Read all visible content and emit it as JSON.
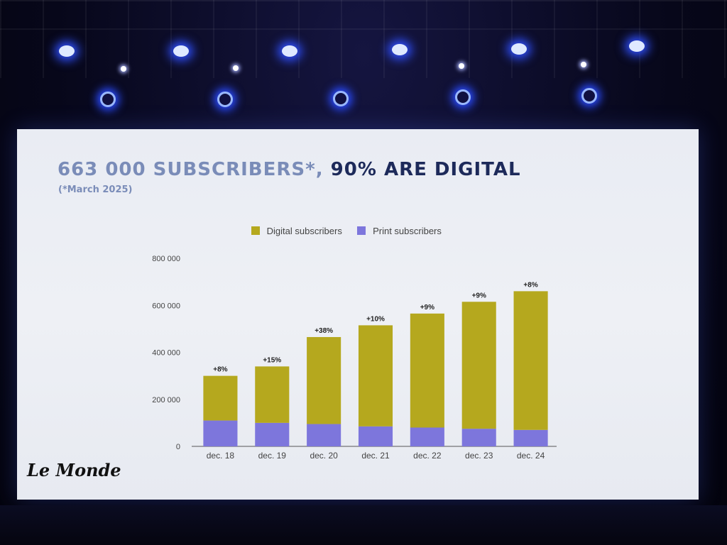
{
  "slide": {
    "title_lead": "663 000 SUBSCRIBERS*,",
    "title_rest": "90% ARE DIGITAL",
    "subtitle": "(*March 2025)",
    "logo": "Le Monde"
  },
  "colors": {
    "digital": "#b5a81e",
    "print": "#7d76dc",
    "title": "#1d2a5a",
    "title_lead": "#7a8cb8"
  },
  "chart_data": {
    "type": "bar",
    "stacked": true,
    "categories": [
      "dec. 18",
      "dec. 19",
      "dec. 20",
      "dec. 21",
      "dec. 22",
      "dec. 23",
      "dec. 24"
    ],
    "series": [
      {
        "name": "Print subscribers",
        "values": [
          110000,
          100000,
          95000,
          85000,
          80000,
          75000,
          70000
        ]
      },
      {
        "name": "Digital subscribers",
        "values": [
          190000,
          240000,
          370000,
          430000,
          485000,
          540000,
          590000
        ]
      }
    ],
    "growth_labels": [
      "+8%",
      "+15%",
      "+38%",
      "+10%",
      "+9%",
      "+9%",
      "+8%"
    ],
    "y_ticks": [
      0,
      200000,
      400000,
      600000,
      800000
    ],
    "y_tick_labels": [
      "0",
      "200 000",
      "400 000",
      "600 000",
      "800 000"
    ],
    "ylim": [
      0,
      800000
    ],
    "legend_position": "top",
    "grid": false
  }
}
